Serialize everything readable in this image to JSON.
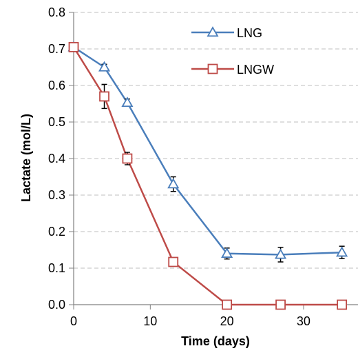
{
  "chart_data": {
    "type": "line",
    "xlabel": "Time (days)",
    "ylabel": "Lactate (mol/L)",
    "xlim": [
      0,
      38
    ],
    "ylim": [
      0,
      0.8
    ],
    "x_ticks": [
      0,
      10,
      20,
      30
    ],
    "x_tick_labels": [
      "0",
      "10",
      "20",
      "30"
    ],
    "y_ticks": [
      0,
      0.1,
      0.2,
      0.3,
      0.4,
      0.5,
      0.6,
      0.7,
      0.8
    ],
    "y_tick_labels": [
      "0.0",
      "0.1",
      "0.2",
      "0.3",
      "0.4",
      "0.5",
      "0.6",
      "0.7",
      "0.8"
    ],
    "grid": "horizontal dashed",
    "legend_position": "top-right",
    "series": [
      {
        "name": "LNG",
        "color": "#4a7ebb",
        "marker": "triangle-open",
        "x": [
          0,
          4,
          7,
          13,
          20,
          27,
          35
        ],
        "y": [
          0.705,
          0.65,
          0.553,
          0.33,
          0.14,
          0.137,
          0.143
        ],
        "error": [
          0.0,
          0.008,
          0.01,
          0.02,
          0.015,
          0.02,
          0.017
        ]
      },
      {
        "name": "LNGW",
        "color": "#be4b48",
        "marker": "square-open",
        "x": [
          0,
          4,
          7,
          13,
          20,
          27,
          35
        ],
        "y": [
          0.705,
          0.57,
          0.4,
          0.117,
          0.0,
          0.0,
          0.0
        ],
        "error": [
          0.0,
          0.033,
          0.017,
          0.008,
          0.0,
          0.0,
          0.0
        ]
      }
    ]
  }
}
